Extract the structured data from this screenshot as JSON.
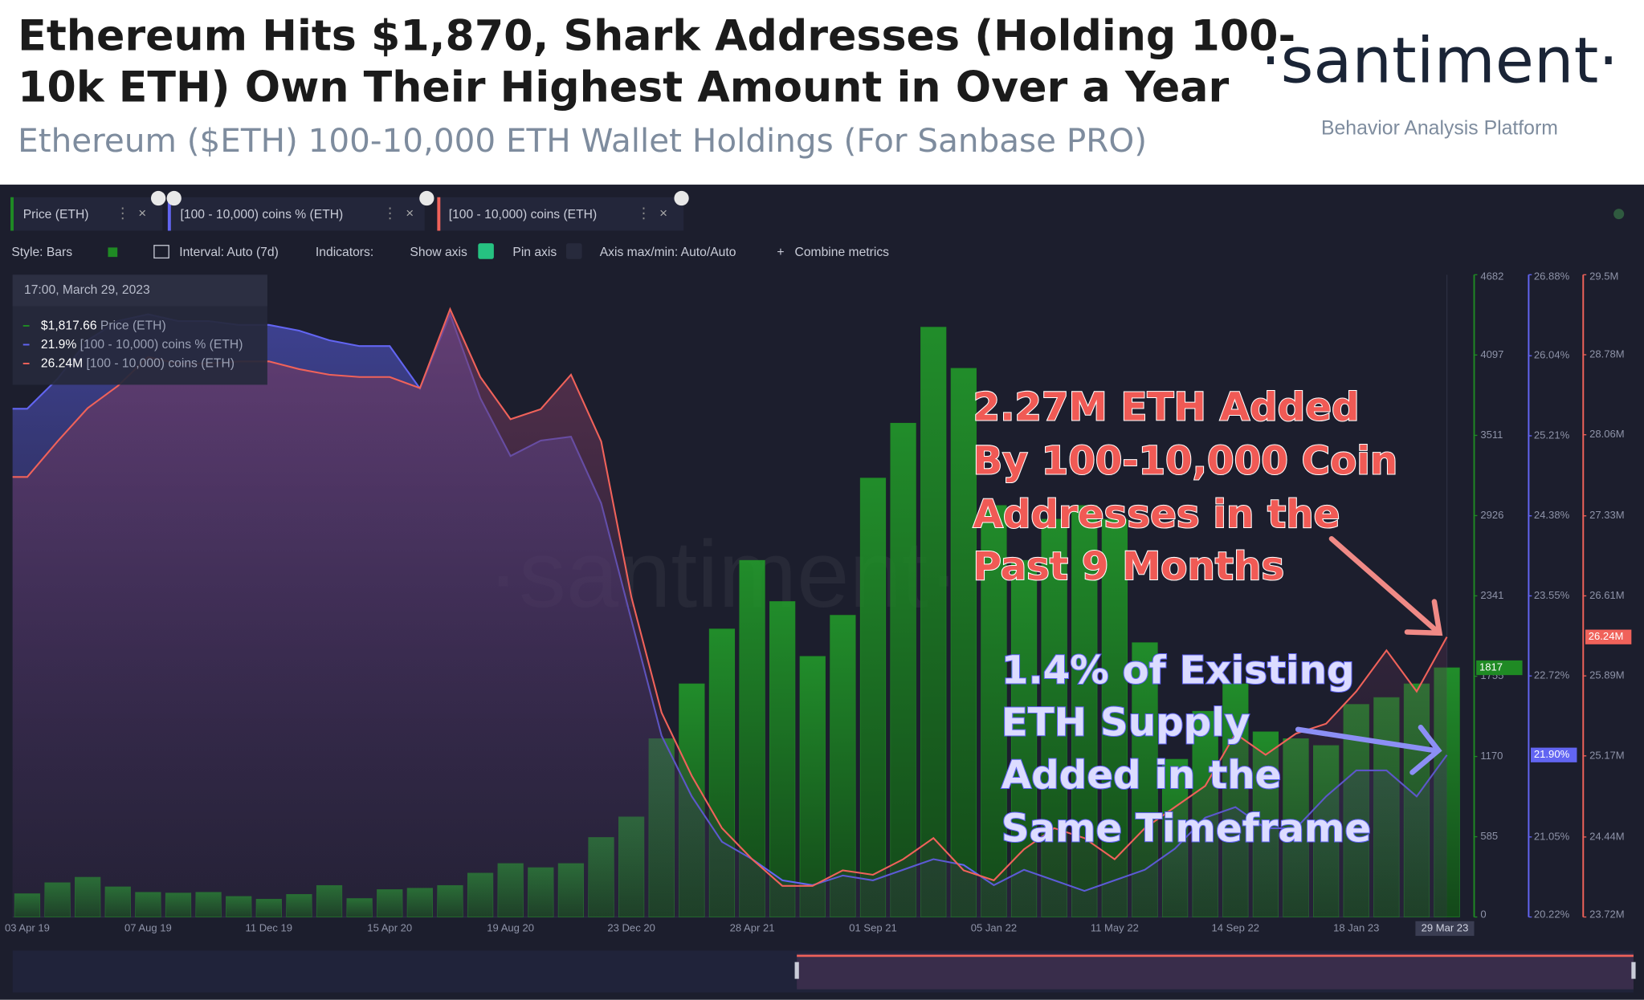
{
  "header": {
    "title_lines": [
      "Ethereum Hits $1,870, Shark Addresses (Holding 100-",
      "10k ETH) Own Their Highest Amount in Over a Year"
    ],
    "subtitle": "Ethereum ($ETH) 100-10,000 ETH Wallet Holdings (For Sanbase PRO)",
    "brand": "·santiment·",
    "brand_tagline": "Behavior Analysis Platform"
  },
  "toolbar": [
    "Style: Bars",
    "Interval: Auto (7d)",
    "Indicators:",
    "Show axis",
    "Pin axis",
    "Axis max/min: Auto/Auto",
    "Combine metrics"
  ],
  "tooltip": {
    "time": "17:00, March 29, 2023",
    "values": [
      "$1,817.66",
      "21.9%",
      "26.24M"
    ]
  },
  "annotations": [
    {
      "lines": [
        "2.27M ETH Added",
        "By 100-10,000 Coin",
        "Addresses in the",
        "Past 9 Months"
      ]
    },
    {
      "lines": [
        "1.4% of Existing",
        "ETH Supply",
        "Added in the",
        "Same Timeframe"
      ]
    }
  ],
  "chart_data": {
    "type": "combo",
    "categories": [
      "03 Apr 19",
      null,
      null,
      null,
      "07 Aug 19",
      null,
      null,
      null,
      "11 Dec 19",
      null,
      null,
      null,
      "15 Apr 20",
      null,
      null,
      null,
      "19 Aug 20",
      null,
      null,
      null,
      "23 Dec 20",
      null,
      null,
      null,
      "28 Apr 21",
      null,
      null,
      null,
      "01 Sep 21",
      null,
      null,
      null,
      "05 Jan 22",
      null,
      null,
      null,
      "11 May 22",
      null,
      null,
      null,
      "14 Sep 22",
      null,
      null,
      null,
      "18 Jan 23",
      null,
      null,
      "29 Mar 23"
    ],
    "ylim": [
      0,
      4682
    ],
    "yticks": [
      0,
      585,
      1170,
      1755,
      2341,
      2926,
      3511,
      4097,
      4682
    ],
    "y2lim": [
      20.22,
      26.88
    ],
    "y2ticks": [
      {
        "value": 20.22,
        "label": "20.22%"
      },
      {
        "value": 21.05,
        "label": "21.05%"
      },
      {
        "value": 22.72,
        "label": "22.72%"
      },
      {
        "value": 23.55,
        "label": "23.55%"
      },
      {
        "value": 24.38,
        "label": "24.38%"
      },
      {
        "value": 25.21,
        "label": "25.21%"
      },
      {
        "value": 26.04,
        "label": "26.04%"
      },
      {
        "value": 26.88,
        "label": "26.88%"
      }
    ],
    "y3lim": [
      23.72,
      29.5
    ],
    "y3ticks": [
      {
        "value": 23.72,
        "label": "23.72M"
      },
      {
        "value": 24.44,
        "label": "24.44M"
      },
      {
        "value": 25.17,
        "label": "25.17M"
      },
      {
        "value": 25.89,
        "label": "25.89M"
      },
      {
        "value": 26.61,
        "label": "26.61M"
      },
      {
        "value": 27.33,
        "label": "27.33M"
      },
      {
        "value": 28.06,
        "label": "28.06M"
      },
      {
        "value": 28.78,
        "label": "28.78M"
      },
      {
        "value": 29.5,
        "label": "29.5M"
      }
    ],
    "series": [
      {
        "name": "Price (ETH)",
        "type": "bar",
        "axis": "y",
        "color": "#1f8a24",
        "last_label": "1817",
        "values": [
          170,
          250,
          290,
          220,
          180,
          175,
          180,
          150,
          130,
          165,
          230,
          135,
          200,
          210,
          230,
          320,
          390,
          360,
          390,
          580,
          730,
          1300,
          1700,
          2100,
          2600,
          2300,
          1900,
          2200,
          3200,
          3600,
          4300,
          4000,
          3000,
          2600,
          2900,
          3000,
          2900,
          2000,
          1150,
          1500,
          1700,
          1350,
          1300,
          1250,
          1550,
          1600,
          1700,
          1817
        ]
      },
      {
        "name": "[100 - 10,000) coins % (ETH)",
        "type": "area",
        "axis": "y2",
        "color": "#6265f2",
        "last_label": "21.90%",
        "values": [
          25.49,
          25.8,
          26.2,
          26.4,
          26.47,
          26.4,
          26.4,
          26.36,
          26.36,
          26.3,
          26.2,
          26.14,
          26.14,
          25.7,
          26.47,
          25.6,
          25.0,
          25.16,
          25.2,
          24.51,
          23.3,
          22.1,
          21.47,
          21.0,
          20.82,
          20.6,
          20.55,
          20.65,
          20.6,
          20.71,
          20.82,
          20.76,
          20.55,
          20.71,
          20.6,
          20.49,
          20.6,
          20.71,
          20.93,
          21.25,
          21.36,
          21.14,
          21.14,
          21.47,
          21.74,
          21.74,
          21.47,
          21.9
        ]
      },
      {
        "name": "[100 - 10,000) coins (ETH)",
        "type": "area",
        "axis": "y3",
        "color": "#f0625a",
        "last_label": "26.24M",
        "values": [
          27.68,
          28.0,
          28.3,
          28.5,
          28.76,
          28.7,
          28.7,
          28.72,
          28.72,
          28.65,
          28.6,
          28.58,
          28.58,
          28.48,
          29.19,
          28.58,
          28.2,
          28.29,
          28.6,
          28.0,
          26.6,
          25.56,
          24.99,
          24.52,
          24.24,
          24.0,
          24.0,
          24.14,
          24.1,
          24.24,
          24.43,
          24.14,
          24.05,
          24.33,
          24.52,
          24.43,
          24.24,
          24.52,
          24.71,
          24.9,
          25.37,
          25.18,
          25.37,
          25.46,
          25.75,
          26.12,
          25.75,
          26.24
        ]
      }
    ]
  }
}
